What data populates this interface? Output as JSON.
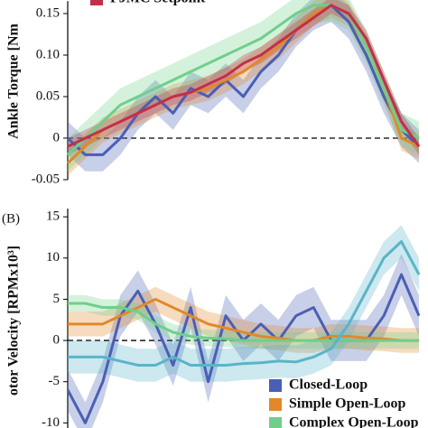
{
  "chart_data": [
    {
      "type": "line",
      "y_label": "Ankle Torque [Nm",
      "ylim": [
        -0.05,
        0.165
      ],
      "yticks": [
        -0.05,
        0,
        0.05,
        {
          "value": 0.1,
          "label": "0.10"
        },
        0.15
      ],
      "zero_line": true,
      "series": [
        {
          "name": "Closed-Loop",
          "color": "#4a5fb4",
          "spread": 0.02,
          "values": [
            0,
            -0.02,
            -0.02,
            0,
            0.03,
            0.05,
            0.03,
            0.06,
            0.05,
            0.07,
            0.05,
            0.08,
            0.1,
            0.13,
            0.15,
            0.16,
            0.14,
            0.1,
            0.05,
            0.01,
            -0.01
          ]
        },
        {
          "name": "Simple Open-Loop",
          "color": "#e0892a",
          "spread": 0.015,
          "values": [
            -0.03,
            -0.01,
            0.01,
            0.02,
            0.03,
            0.04,
            0.05,
            0.055,
            0.06,
            0.07,
            0.08,
            0.095,
            0.11,
            0.13,
            0.15,
            0.16,
            0.15,
            0.11,
            0.06,
            0,
            -0.01
          ]
        },
        {
          "name": "Complex Open-Loop",
          "color": "#6fcf8a",
          "spread": 0.02,
          "values": [
            -0.02,
            0,
            0.02,
            0.04,
            0.05,
            0.06,
            0.07,
            0.08,
            0.09,
            0.1,
            0.11,
            0.12,
            0.135,
            0.15,
            0.16,
            0.16,
            0.15,
            0.11,
            0.06,
            0.01,
            0
          ]
        },
        {
          "name": "PJMC Setpoint",
          "color": "#c0304a",
          "spread": 0.01,
          "values": [
            -0.01,
            0,
            0.01,
            0.02,
            0.03,
            0.04,
            0.05,
            0.055,
            0.065,
            0.075,
            0.09,
            0.1,
            0.115,
            0.13,
            0.145,
            0.16,
            0.15,
            0.12,
            0.07,
            0.02,
            -0.01
          ]
        }
      ],
      "legend": [
        "PJMC Setpoint"
      ]
    },
    {
      "type": "line",
      "panel_label": "(B)",
      "y_label": "otor Velocity [RPMx10³]",
      "ylim": [
        -11,
        16
      ],
      "yticks": [
        15,
        10,
        5,
        0,
        -5,
        -10
      ],
      "zero_line": true,
      "series": [
        {
          "name": "Closed-Loop",
          "color": "#4a5fb4",
          "spread": 2.5,
          "values": [
            -6,
            -10,
            -5,
            3,
            6,
            2,
            -3,
            4,
            -5,
            3,
            0,
            2,
            0,
            3,
            4,
            0,
            0,
            0,
            3,
            8,
            3
          ]
        },
        {
          "name": "Simple Open-Loop",
          "color": "#e0892a",
          "spread": 1.5,
          "values": [
            2,
            2,
            2,
            3,
            4,
            5,
            4,
            3,
            2,
            1.5,
            1,
            0.5,
            0.3,
            0,
            0,
            0.5,
            0.5,
            0.3,
            0.2,
            0,
            0
          ]
        },
        {
          "name": "Complex Open-Loop",
          "color": "#6fcf8a",
          "spread": 1,
          "values": [
            4.5,
            4.5,
            4,
            4,
            3.5,
            2,
            1,
            0.5,
            0.3,
            0.2,
            0,
            0,
            0,
            0,
            0,
            0,
            0,
            0,
            0,
            0,
            0
          ]
        },
        {
          "color": "#5ab4c8",
          "spread": 2,
          "values": [
            -2,
            -2,
            -2,
            -2.5,
            -3,
            -3,
            -2,
            -3,
            -3,
            -3,
            -2.8,
            -2.7,
            -2.5,
            -2.6,
            -2,
            -1,
            2,
            6,
            10,
            12,
            8
          ]
        }
      ],
      "legend": [
        "Closed-Loop",
        "Simple Open-Loop",
        "Complex Open-Loop"
      ]
    }
  ]
}
